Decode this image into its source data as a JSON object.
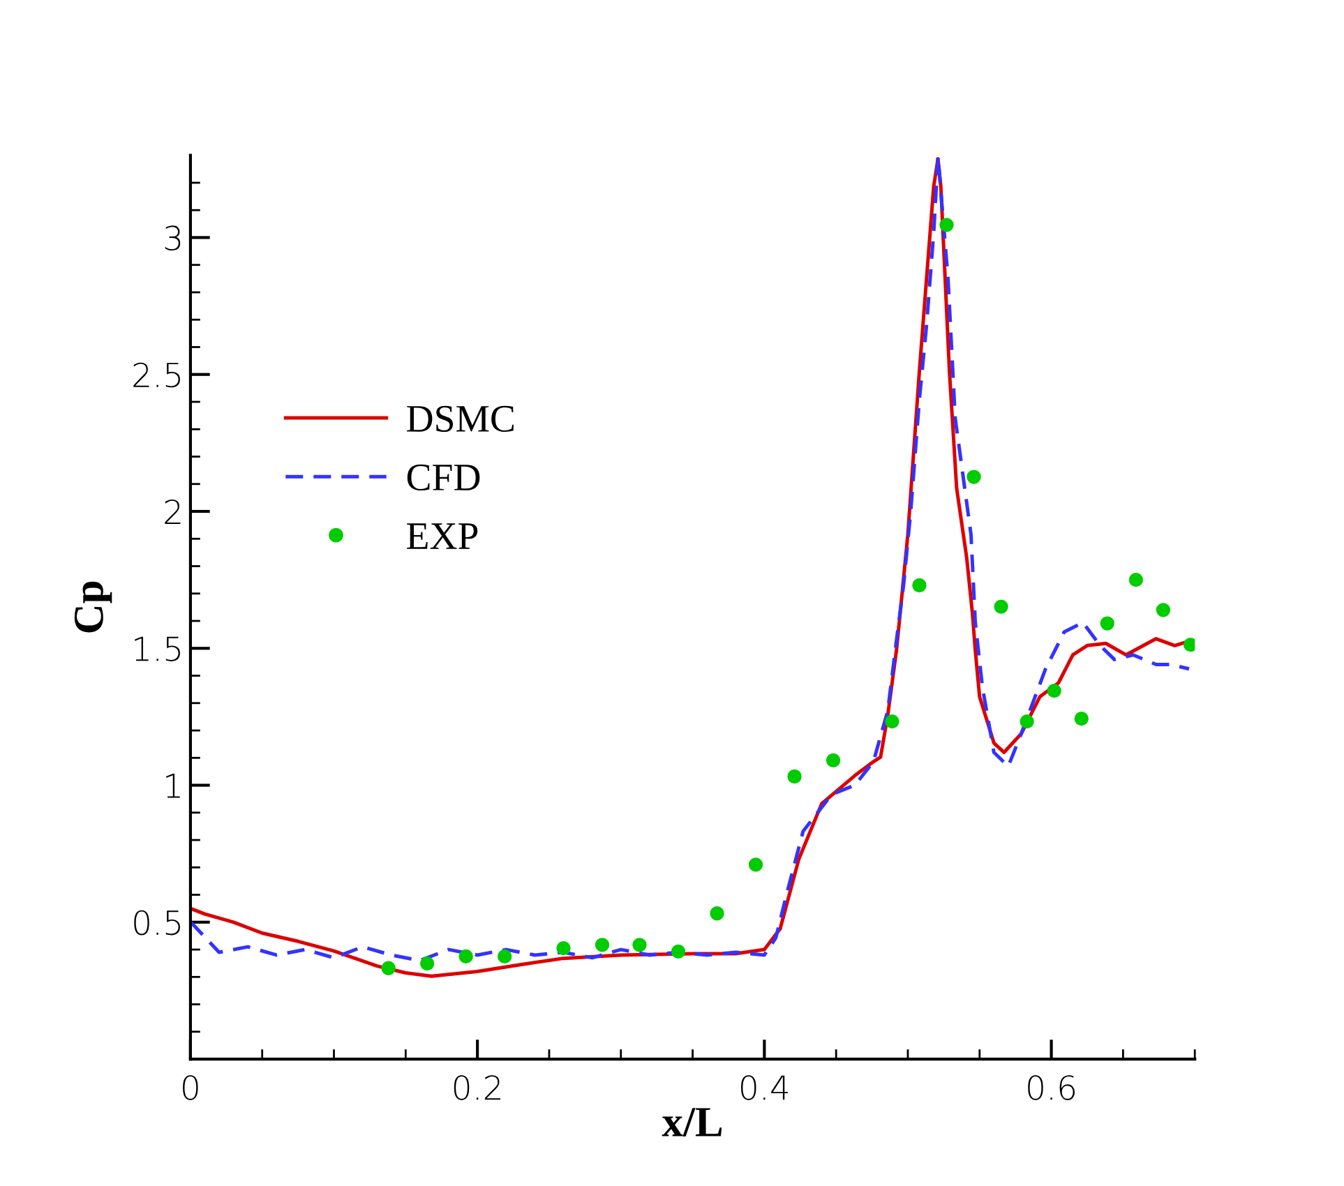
{
  "chart_data": {
    "type": "line",
    "xlabel": "x/L",
    "ylabel": "Cp",
    "xlim": [
      0,
      0.7
    ],
    "ylim": [
      0,
      3.3
    ],
    "xticks": [
      0,
      {
        "value": 0.05,
        "label": null
      },
      {
        "value": 0.1,
        "label": null
      },
      {
        "value": 0.15,
        "label": null
      },
      0.2,
      {
        "value": 0.25,
        "label": null
      },
      {
        "value": 0.3,
        "label": null
      },
      {
        "value": 0.35,
        "label": null
      },
      0.4,
      {
        "value": 0.45,
        "label": null
      },
      {
        "value": 0.5,
        "label": null
      },
      {
        "value": 0.55,
        "label": null
      },
      0.6,
      {
        "value": 0.65,
        "label": null
      },
      {
        "value": 0.7,
        "label": null
      }
    ],
    "yticks": [
      {
        "value": 0.1,
        "label": null
      },
      {
        "value": 0.2,
        "label": null
      },
      {
        "value": 0.3,
        "label": null
      },
      {
        "value": 0.4,
        "label": null
      },
      0.5,
      {
        "value": 0.6,
        "label": null
      },
      {
        "value": 0.7,
        "label": null
      },
      {
        "value": 0.8,
        "label": null
      },
      {
        "value": 0.9,
        "label": null
      },
      1,
      {
        "value": 1.1,
        "label": null
      },
      {
        "value": 1.2,
        "label": null
      },
      {
        "value": 1.3,
        "label": null
      },
      {
        "value": 1.4,
        "label": null
      },
      1.5,
      {
        "value": 1.6,
        "label": null
      },
      {
        "value": 1.7,
        "label": null
      },
      {
        "value": 1.8,
        "label": null
      },
      {
        "value": 1.9,
        "label": null
      },
      2,
      {
        "value": 2.1,
        "label": null
      },
      {
        "value": 2.2,
        "label": null
      },
      {
        "value": 2.3,
        "label": null
      },
      {
        "value": 2.4,
        "label": null
      },
      2.5,
      {
        "value": 2.6,
        "label": null
      },
      {
        "value": 2.7,
        "label": null
      },
      {
        "value": 2.8,
        "label": null
      },
      {
        "value": 2.9,
        "label": null
      },
      3,
      {
        "value": 3.1,
        "label": null
      },
      {
        "value": 3.2,
        "label": null
      }
    ],
    "grid": false,
    "legend": "left",
    "series": [
      {
        "name": "DSMC",
        "type": "line",
        "color": "#dd0000",
        "line_style": "solid",
        "marker": "none",
        "x": [
          0,
          0.01,
          0.03,
          0.05,
          0.075,
          0.1,
          0.13,
          0.15,
          0.168,
          0.2,
          0.23,
          0.26,
          0.3,
          0.35,
          0.38,
          0.4,
          0.411,
          0.424,
          0.44,
          0.463,
          0.476,
          0.481,
          0.486,
          0.492,
          0.494,
          0.5,
          0.508,
          0.513,
          0.518,
          0.521,
          0.523,
          0.526,
          0.529,
          0.534,
          0.541,
          0.545,
          0.547,
          0.55,
          0.56,
          0.567,
          0.579,
          0.592,
          0.605,
          0.615,
          0.625,
          0.638,
          0.652,
          0.673,
          0.686,
          0.696
        ],
        "values": [
          0.55,
          0.53,
          0.5,
          0.46,
          0.43,
          0.395,
          0.34,
          0.315,
          0.303,
          0.32,
          0.345,
          0.368,
          0.38,
          0.385,
          0.385,
          0.4,
          0.476,
          0.73,
          0.933,
          1.035,
          1.086,
          1.103,
          1.256,
          1.49,
          1.594,
          1.916,
          2.509,
          2.848,
          3.186,
          3.288,
          3.186,
          2.848,
          2.509,
          2.085,
          1.831,
          1.628,
          1.492,
          1.323,
          1.154,
          1.12,
          1.188,
          1.323,
          1.374,
          1.476,
          1.51,
          1.518,
          1.476,
          1.535,
          1.51,
          1.526
        ]
      },
      {
        "name": "CFD",
        "type": "line",
        "color": "#3333ff",
        "line_style": "dashed",
        "marker": "none",
        "x": [
          0,
          0.003,
          0.02,
          0.04,
          0.06,
          0.08,
          0.1,
          0.12,
          0.14,
          0.16,
          0.18,
          0.2,
          0.22,
          0.24,
          0.26,
          0.28,
          0.3,
          0.32,
          0.34,
          0.36,
          0.38,
          0.4,
          0.408,
          0.416,
          0.427,
          0.447,
          0.463,
          0.476,
          0.486,
          0.492,
          0.497,
          0.502,
          0.508,
          0.513,
          0.518,
          0.521,
          0.528,
          0.533,
          0.544,
          0.547,
          0.552,
          0.56,
          0.57,
          0.579,
          0.596,
          0.609,
          0.622,
          0.634,
          0.644,
          0.657,
          0.673,
          0.683,
          0.696
        ],
        "values": [
          0.5,
          0.485,
          0.39,
          0.41,
          0.38,
          0.4,
          0.37,
          0.41,
          0.38,
          0.36,
          0.4,
          0.38,
          0.4,
          0.38,
          0.39,
          0.37,
          0.4,
          0.38,
          0.39,
          0.38,
          0.39,
          0.38,
          0.443,
          0.612,
          0.832,
          0.967,
          1.0,
          1.086,
          1.272,
          1.526,
          1.73,
          2.0,
          2.407,
          2.678,
          3.017,
          3.296,
          2.85,
          2.34,
          1.916,
          1.594,
          1.357,
          1.12,
          1.069,
          1.188,
          1.425,
          1.56,
          1.594,
          1.51,
          1.459,
          1.476,
          1.441,
          1.441,
          1.425
        ]
      },
      {
        "name": "EXP",
        "type": "scatter",
        "color": "#00cc00",
        "marker": "circle",
        "x": [
          0.138,
          0.165,
          0.192,
          0.219,
          0.26,
          0.287,
          0.313,
          0.34,
          0.367,
          0.394,
          0.421,
          0.448,
          0.489,
          0.508,
          0.527,
          0.546,
          0.565,
          0.583,
          0.602,
          0.621,
          0.639,
          0.659,
          0.678,
          0.697
        ],
        "values": [
          0.332,
          0.349,
          0.375,
          0.375,
          0.405,
          0.417,
          0.417,
          0.393,
          0.532,
          0.71,
          1.032,
          1.091,
          1.233,
          1.73,
          3.046,
          2.126,
          1.652,
          1.233,
          1.345,
          1.243,
          1.591,
          1.75,
          1.64,
          1.513
        ]
      }
    ]
  }
}
